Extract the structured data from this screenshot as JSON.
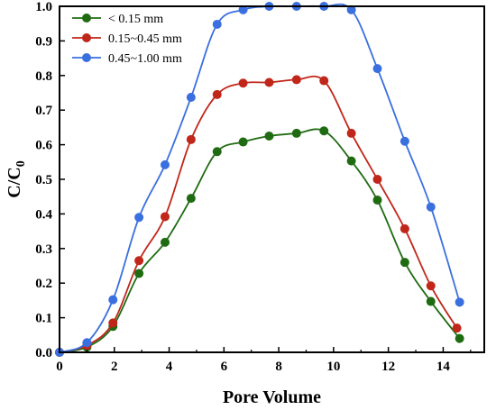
{
  "chart_data": {
    "type": "line",
    "title": "",
    "xlabel": "Pore Volume",
    "ylabel_main": "C/C",
    "ylabel_sub": "0",
    "xlim": [
      0,
      15.5
    ],
    "ylim": [
      0,
      1.0
    ],
    "xticks": [
      0,
      2,
      4,
      6,
      8,
      10,
      12,
      14
    ],
    "yticks": [
      0.0,
      0.1,
      0.2,
      0.3,
      0.4,
      0.5,
      0.6,
      0.7,
      0.8,
      0.9,
      1.0
    ],
    "xtick_labels": [
      "0",
      "2",
      "4",
      "6",
      "8",
      "10",
      "12",
      "14"
    ],
    "ytick_labels": [
      "0.0",
      "0.1",
      "0.2",
      "0.3",
      "0.4",
      "0.5",
      "0.6",
      "0.7",
      "0.8",
      "0.9",
      "1.0"
    ],
    "grid": false,
    "legend_position": "top-left",
    "series": [
      {
        "name": "< 0.15 mm",
        "color": "#1f6b12",
        "x": [
          0,
          1.0,
          1.95,
          2.9,
          3.85,
          4.8,
          5.75,
          6.7,
          7.65,
          8.65,
          9.65,
          10.65,
          11.6,
          12.6,
          13.55,
          14.6
        ],
        "y": [
          0,
          0.015,
          0.075,
          0.228,
          0.318,
          0.445,
          0.58,
          0.608,
          0.625,
          0.633,
          0.64,
          0.553,
          0.44,
          0.26,
          0.147,
          0.04
        ]
      },
      {
        "name": "0.15~0.45 mm",
        "color": "#c0261a",
        "x": [
          0,
          1.0,
          1.95,
          2.9,
          3.85,
          4.8,
          5.75,
          6.7,
          7.65,
          8.65,
          9.65,
          10.65,
          11.6,
          12.6,
          13.55,
          14.5
        ],
        "y": [
          0,
          0.02,
          0.085,
          0.265,
          0.392,
          0.615,
          0.745,
          0.778,
          0.78,
          0.788,
          0.785,
          0.633,
          0.5,
          0.357,
          0.192,
          0.07
        ]
      },
      {
        "name": "0.45~1.00 mm",
        "color": "#3a6fe0",
        "x": [
          0,
          1.0,
          1.95,
          2.9,
          3.85,
          4.8,
          5.75,
          6.7,
          7.65,
          8.65,
          9.65,
          10.65,
          11.6,
          12.6,
          13.55,
          14.6
        ],
        "y": [
          0,
          0.028,
          0.152,
          0.39,
          0.542,
          0.737,
          0.948,
          0.99,
          1.0,
          1.0,
          1.0,
          0.99,
          0.82,
          0.61,
          0.42,
          0.145
        ]
      }
    ]
  }
}
